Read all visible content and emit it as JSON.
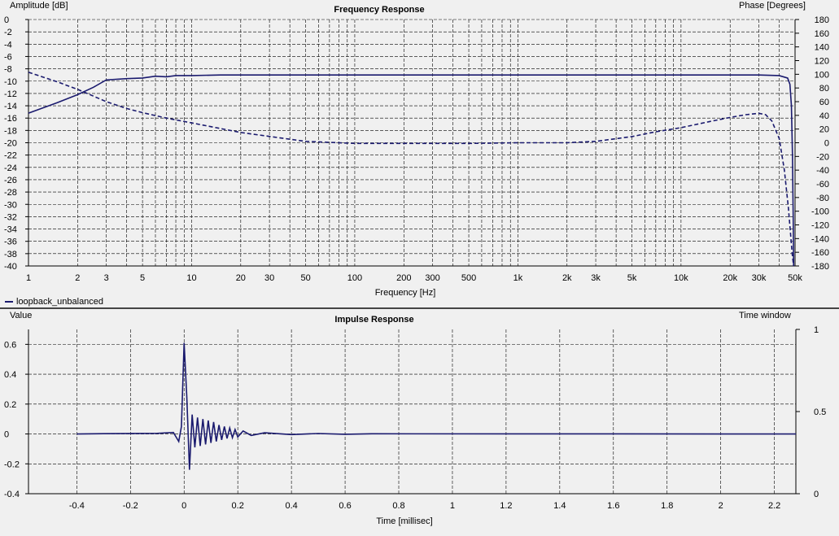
{
  "chart_data": [
    {
      "type": "line",
      "title": "Frequency Response",
      "ylabel_left": "Amplitude [dB]",
      "ylabel_right": "Phase [Degrees]",
      "xlabel": "Frequency [Hz]",
      "xscale": "log",
      "xlim": [
        1,
        50000
      ],
      "ylim_left": [
        -40,
        0
      ],
      "ylim_right": [
        -180,
        180
      ],
      "x_tick_labels": [
        {
          "v": 1,
          "t": "1"
        },
        {
          "v": 2,
          "t": "2"
        },
        {
          "v": 3,
          "t": "3"
        },
        {
          "v": 5,
          "t": "5"
        },
        {
          "v": 10,
          "t": "10"
        },
        {
          "v": 20,
          "t": "20"
        },
        {
          "v": 30,
          "t": "30"
        },
        {
          "v": 50,
          "t": "50"
        },
        {
          "v": 100,
          "t": "100"
        },
        {
          "v": 200,
          "t": "200"
        },
        {
          "v": 300,
          "t": "300"
        },
        {
          "v": 500,
          "t": "500"
        },
        {
          "v": 1000,
          "t": "1k"
        },
        {
          "v": 2000,
          "t": "2k"
        },
        {
          "v": 3000,
          "t": "3k"
        },
        {
          "v": 5000,
          "t": "5k"
        },
        {
          "v": 10000,
          "t": "10k"
        },
        {
          "v": 20000,
          "t": "20k"
        },
        {
          "v": 30000,
          "t": "30k"
        },
        {
          "v": 50000,
          "t": "50k"
        }
      ],
      "y_ticks_left": [
        0,
        -2,
        -4,
        -6,
        -8,
        -10,
        -12,
        -14,
        -16,
        -18,
        -20,
        -22,
        -24,
        -26,
        -28,
        -30,
        -32,
        -34,
        -36,
        -38,
        -40
      ],
      "y_ticks_right": [
        180,
        160,
        140,
        120,
        100,
        80,
        60,
        40,
        20,
        0,
        -20,
        -40,
        -60,
        -80,
        -100,
        -120,
        -140,
        -160,
        -180
      ],
      "legend": "loopback_unbalanced",
      "series": [
        {
          "name": "loopback_unbalanced",
          "quantity": "amplitude",
          "axis": "left",
          "style": "solid",
          "color": "#1a1a6e",
          "points": [
            [
              1,
              -15.2
            ],
            [
              1.5,
              -13.5
            ],
            [
              2,
              -12.2
            ],
            [
              2.5,
              -11.0
            ],
            [
              3,
              -9.8
            ],
            [
              4,
              -9.6
            ],
            [
              5,
              -9.5
            ],
            [
              6,
              -9.2
            ],
            [
              7,
              -9.3
            ],
            [
              8,
              -9.1
            ],
            [
              10,
              -9.1
            ],
            [
              15,
              -9.0
            ],
            [
              50,
              -9.0
            ],
            [
              1000,
              -9.0
            ],
            [
              10000,
              -9.0
            ],
            [
              30000,
              -9.0
            ],
            [
              40000,
              -9.1
            ],
            [
              45000,
              -9.5
            ],
            [
              46500,
              -10.5
            ],
            [
              47500,
              -14.0
            ],
            [
              48200,
              -22.0
            ],
            [
              48700,
              -32.0
            ],
            [
              49000,
              -40.0
            ]
          ]
        },
        {
          "name": "loopback_unbalanced",
          "quantity": "phase",
          "axis": "right",
          "style": "dashed",
          "color": "#1a1a6e",
          "points": [
            [
              1,
              103
            ],
            [
              1.5,
              89
            ],
            [
              2,
              78
            ],
            [
              3,
              60
            ],
            [
              4,
              50
            ],
            [
              5,
              44
            ],
            [
              7,
              36
            ],
            [
              10,
              29
            ],
            [
              20,
              15
            ],
            [
              50,
              2
            ],
            [
              100,
              -1
            ],
            [
              200,
              -1
            ],
            [
              500,
              -1
            ],
            [
              1000,
              0
            ],
            [
              2000,
              0
            ],
            [
              3000,
              2
            ],
            [
              5000,
              9
            ],
            [
              7000,
              16
            ],
            [
              10000,
              22
            ],
            [
              15000,
              31
            ],
            [
              20000,
              37
            ],
            [
              25000,
              41
            ],
            [
              30000,
              43
            ],
            [
              33000,
              41
            ],
            [
              36000,
              32
            ],
            [
              40000,
              6
            ],
            [
              43000,
              -40
            ],
            [
              45500,
              -95
            ],
            [
              47000,
              -135
            ],
            [
              48000,
              -162
            ],
            [
              49000,
              -180
            ]
          ]
        }
      ]
    },
    {
      "type": "line",
      "title": "Impulse Response",
      "ylabel_left": "Value",
      "ylabel_right": "Time window",
      "xlabel": "Time [millisec]",
      "xlim": [
        -0.58,
        2.28
      ],
      "ylim_left": [
        -0.4,
        0.7
      ],
      "ylim_right": [
        0,
        1
      ],
      "x_ticks": [
        -0.4,
        -0.2,
        0,
        0.2,
        0.4,
        0.6,
        0.8,
        1,
        1.2,
        1.4,
        1.6,
        1.8,
        2,
        2.2
      ],
      "x_tick_labels": [
        "-0.4",
        "-0.2",
        "0",
        "0.2",
        "0.4",
        "0.6",
        "0.8",
        "1",
        "1.2",
        "1.4",
        "1.6",
        "1.8",
        "2",
        "2.2"
      ],
      "y_ticks_left": [
        0.6,
        0.4,
        0.2,
        0,
        -0.2,
        -0.4
      ],
      "y_tick_labels_left": [
        "0.6",
        "0.4",
        "0.2",
        "0",
        "-0.2",
        "-0.4"
      ],
      "y_ticks_right": [
        1,
        0.5,
        0
      ],
      "y_tick_labels_right": [
        "1",
        "0.5",
        "0"
      ],
      "series": [
        {
          "name": "loopback_unbalanced",
          "color": "#1a1a6e",
          "points": [
            [
              -0.4,
              0
            ],
            [
              -0.3,
              0.002
            ],
            [
              -0.1,
              0.004
            ],
            [
              -0.04,
              0.01
            ],
            [
              -0.02,
              -0.05
            ],
            [
              -0.01,
              0.05
            ],
            [
              0,
              0.61
            ],
            [
              0.01,
              0.25
            ],
            [
              0.02,
              -0.24
            ],
            [
              0.03,
              0.13
            ],
            [
              0.04,
              -0.09
            ],
            [
              0.05,
              0.11
            ],
            [
              0.06,
              -0.08
            ],
            [
              0.07,
              0.1
            ],
            [
              0.08,
              -0.07
            ],
            [
              0.09,
              0.09
            ],
            [
              0.1,
              -0.06
            ],
            [
              0.11,
              0.08
            ],
            [
              0.12,
              -0.05
            ],
            [
              0.13,
              0.06
            ],
            [
              0.14,
              -0.04
            ],
            [
              0.15,
              0.05
            ],
            [
              0.16,
              -0.03
            ],
            [
              0.17,
              0.04
            ],
            [
              0.18,
              -0.025
            ],
            [
              0.19,
              0.03
            ],
            [
              0.2,
              -0.02
            ],
            [
              0.22,
              0.02
            ],
            [
              0.25,
              -0.01
            ],
            [
              0.3,
              0.008
            ],
            [
              0.4,
              -0.004
            ],
            [
              0.5,
              0.003
            ],
            [
              0.6,
              -0.002
            ],
            [
              0.7,
              0.001
            ],
            [
              2.28,
              0
            ]
          ]
        }
      ]
    }
  ]
}
